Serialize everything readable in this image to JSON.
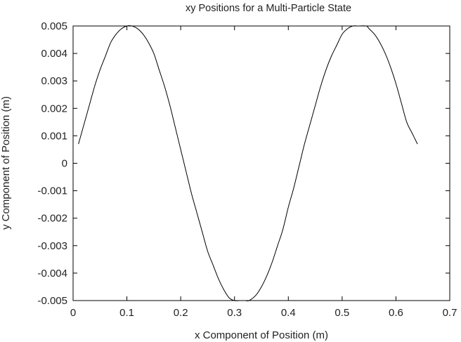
{
  "chart_data": {
    "type": "line",
    "title": "xy Positions for a Multi-Particle State",
    "xlabel": "x Component of Position (m)",
    "ylabel": "y Component of Position (m)",
    "xlim": [
      0,
      0.7
    ],
    "ylim": [
      -0.005,
      0.005
    ],
    "xticks": [
      0,
      0.1,
      0.2,
      0.3,
      0.4,
      0.5,
      0.6,
      0.7
    ],
    "yticks": [
      -0.005,
      -0.004,
      -0.003,
      -0.002,
      -0.001,
      0,
      0.001,
      0.002,
      0.003,
      0.004,
      0.005
    ],
    "xtick_labels": [
      "0",
      "0.1",
      "0.2",
      "0.3",
      "0.4",
      "0.5",
      "0.6",
      "0.7"
    ],
    "ytick_labels": [
      "-0.005",
      "-0.004",
      "-0.003",
      "-0.002",
      "-0.001",
      "0",
      "0.001",
      "0.002",
      "0.003",
      "0.004",
      "0.005"
    ],
    "grid": false,
    "legend": "none",
    "line_color": "#000000",
    "series": [
      {
        "x": [
          0.01,
          0.02,
          0.03,
          0.04,
          0.05,
          0.06,
          0.07,
          0.08,
          0.09,
          0.1,
          0.109,
          0.12,
          0.13,
          0.14,
          0.15,
          0.16,
          0.17,
          0.18,
          0.19,
          0.2,
          0.21,
          0.22,
          0.23,
          0.24,
          0.25,
          0.26,
          0.27,
          0.28,
          0.29,
          0.3,
          0.31,
          0.32,
          0.327,
          0.34,
          0.35,
          0.36,
          0.37,
          0.38,
          0.39,
          0.4,
          0.41,
          0.42,
          0.43,
          0.44,
          0.45,
          0.46,
          0.47,
          0.48,
          0.49,
          0.5,
          0.51,
          0.52,
          0.53,
          0.545,
          0.55,
          0.56,
          0.57,
          0.58,
          0.59,
          0.6,
          0.61,
          0.62,
          0.63,
          0.64
        ],
        "y": [
          0.0007,
          0.0014,
          0.0021,
          0.0028,
          0.0034,
          0.0039,
          0.0044,
          0.0047,
          0.0049,
          0.005,
          0.005,
          0.0049,
          0.0047,
          0.0044,
          0.004,
          0.0034,
          0.0028,
          0.0021,
          0.0013,
          0.0005,
          -0.0003,
          -0.0011,
          -0.0018,
          -0.0025,
          -0.0032,
          -0.0037,
          -0.0042,
          -0.0046,
          -0.0049,
          -0.005,
          -0.005,
          -0.005,
          -0.005,
          -0.0048,
          -0.0045,
          -0.0041,
          -0.0036,
          -0.003,
          -0.0024,
          -0.0016,
          -0.0009,
          -0.0001,
          0.0007,
          0.0014,
          0.0021,
          0.0028,
          0.0034,
          0.0039,
          0.0043,
          0.0047,
          0.0049,
          0.005,
          0.005,
          0.005,
          0.0049,
          0.0047,
          0.0044,
          0.004,
          0.0035,
          0.0029,
          0.0022,
          0.0015,
          0.0011,
          0.0007
        ]
      }
    ]
  }
}
